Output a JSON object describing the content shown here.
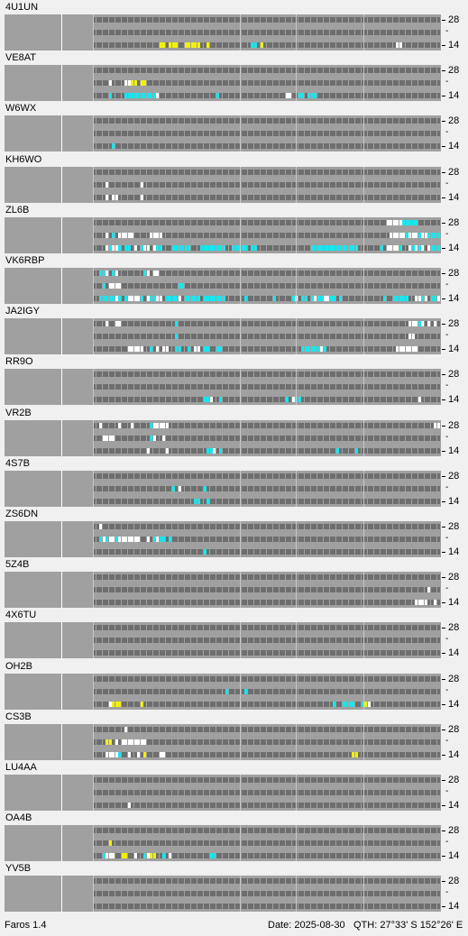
{
  "bands": {
    "top": "28",
    "bottom": "14",
    "middle": "-"
  },
  "colors": {
    "cell_off": "#6e6e6e",
    "white": "#ffffff",
    "cyan": "#18e6ee",
    "yellow": "#f2f200"
  },
  "footer": {
    "app": "Faros 1.4",
    "date": "Date: 2025-08-30",
    "qth": "QTH: 27°33' S  152°26' E"
  },
  "stations": [
    {
      "call": "4U1UN",
      "rows": [
        "......................................................................................",
        "......................................................................................",
        ".....................yy.yyy..yyyyy..y.............cc.y..........................................ww........."
      ]
    },
    {
      "call": "VE8AT",
      "rows": [
        "......................................................................................",
        ".....w....wwyy.yy.....",
        ".....c....ccccccccccw..................c.....................ww..cc.ccc............................"
      ]
    },
    {
      "call": "W6WX",
      "rows": [
        "......................................................................................",
        "......................................................................................",
        "......c..............................................................................."
      ]
    },
    {
      "call": "KH6WO",
      "rows": [
        "......................................................................................",
        "....w..........w.......",
        "....w.ww.......w......."
      ]
    },
    {
      "call": "ZL6B",
      "rows": [
        ".............................................................................................wwwwwccccc",
        "....w.c.wwwww.....wwww........................................................................wwwwwcwwwcwwcccc.w",
        "....wcwwc.cc.w.cww.wcc...cccccc...cccccccc..ccccc.cc.................ccccccccccccccc.......c.wwwwc..wcwcw.wccccwc"
      ]
    },
    {
      "call": "VK6RBP",
      "rows": [
        "..ccw.cw........cw.ww",
        "...c.wwww..................cc.........................................................................................cccwcww",
        "..cccccwc.cwwwwc.wccww.ccccw.ccccc.ccccccc......c........c.....cw.cc.cwccwwcc.c.............c..ccccc..wwcw.ccwccwccwcccc"
      ]
    },
    {
      "call": "JA2IGY",
      "rows": [
        "....w..ww.................c.........................................................................wwwcw.w.w.c..w",
        "..........................c.........................................................................ww.........c",
        "...........wwwww..c.w.ww..cc..c.ww.cc..cc.........................ccccccwc......................wwwwwww"
      ]
    },
    {
      "call": "RR9O",
      "rows": [
        "......................................................................................",
        "......................................................................................",
        "...................................ccw..c....................c.wcc.....................................w"
      ]
    },
    {
      "call": "VR2B",
      "rows": [
        "..w.....w...w.....cwwwww....................................................................................ww...ww.ww.w",
        "...wwww...........cw..w.....",
        ".................w.....w............ccw.c....................................c.....c...."
      ]
    },
    {
      "call": "4S7B",
      "rows": [
        "......................................................................................",
        ".........................c.w.......c..........",
        "................................cc..c........"
      ]
    },
    {
      "call": "ZS6DN",
      "rows": [
        "..w.......",
        "..cwcwwcwwwwwww..w.cwcc.c...",
        "...................................c........"
      ]
    },
    {
      "call": "5Z4B",
      "rows": [
        "......................................................................................",
        "..........................................................................................................w",
        "......................................................................................................wwww..w"
      ]
    },
    {
      "call": "4X6TU",
      "rows": [
        "......................................................................................",
        "......................................................................................",
        "......................................................................................"
      ]
    },
    {
      "call": "OH2B",
      "rows": [
        "......................................................................................",
        "..........................................c.....c..",
        ".....wyyy......y............................................................c..cccc..cyw..........................yyyy"
      ]
    },
    {
      "call": "CS3B",
      "rows": [
        "..........w....",
        "....yy.w.wwwwwwww................................................................................................wwww.wwcw..wcww",
        "....wwwwc..w..w.y....ww...........................................................yy.............................yy..w"
      ]
    },
    {
      "call": "LU4AA",
      "rows": [
        "......................................................................................",
        "......................................................................................",
        "...........w.............................."
      ]
    },
    {
      "call": "OA4B",
      "rows": [
        "......................................................................................",
        ".....y",
        "...cwww..yy..w..cwyy..c.w............cc........."
      ]
    },
    {
      "call": "YV5B",
      "rows": [
        "......................................................................................",
        "......................................................................................",
        "......................................................................................"
      ]
    }
  ]
}
